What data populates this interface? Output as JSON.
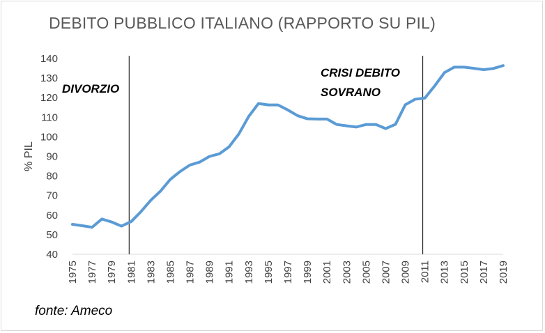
{
  "chart_data": {
    "type": "line",
    "title": "DEBITO PUBBLICO ITALIANO (RAPPORTO SU PIL)",
    "ylabel": "% PIL",
    "xlabel": "",
    "ylim": [
      40,
      140
    ],
    "yticks": [
      40,
      50,
      60,
      70,
      80,
      90,
      100,
      110,
      120,
      130,
      140
    ],
    "xtick_labels": [
      "1975",
      "1977",
      "1979",
      "1981",
      "1983",
      "1985",
      "1987",
      "1989",
      "1991",
      "1993",
      "1995",
      "1997",
      "1999",
      "2001",
      "2003",
      "2005",
      "2007",
      "2009",
      "2011",
      "2013",
      "2015",
      "2017",
      "2019"
    ],
    "grid": false,
    "line_color": "#5b9bd5",
    "x": [
      1975,
      1976,
      1977,
      1978,
      1979,
      1980,
      1981,
      1982,
      1983,
      1984,
      1985,
      1986,
      1987,
      1988,
      1989,
      1990,
      1991,
      1992,
      1993,
      1994,
      1995,
      1996,
      1997,
      1998,
      1999,
      2000,
      2001,
      2002,
      2003,
      2004,
      2005,
      2006,
      2007,
      2008,
      2009,
      2010,
      2011,
      2012,
      2013,
      2014,
      2015,
      2016,
      2017,
      2018,
      2019
    ],
    "series": [
      {
        "values": [
          55.3,
          54.6,
          53.8,
          58.0,
          56.5,
          54.4,
          56.7,
          61.8,
          67.6,
          72.3,
          78.3,
          82.3,
          85.6,
          87.1,
          90.0,
          91.3,
          94.9,
          101.5,
          110.4,
          117.0,
          116.3,
          116.3,
          113.7,
          110.8,
          109.2,
          109.1,
          109.1,
          106.3,
          105.6,
          105.0,
          106.3,
          106.3,
          104.2,
          106.4,
          116.4,
          119.2,
          119.8,
          126.0,
          132.8,
          135.6,
          135.6,
          135.0,
          134.3,
          134.9,
          136.4
        ]
      }
    ],
    "annotations": [
      {
        "text": "DIVORZIO",
        "x": 1981
      },
      {
        "text": "CRISI DEBITO",
        "x": 2011
      },
      {
        "text": "SOVRANO",
        "x": 2011
      }
    ],
    "vlines": [
      1981,
      2011
    ]
  },
  "source_note": "fonte: Ameco"
}
